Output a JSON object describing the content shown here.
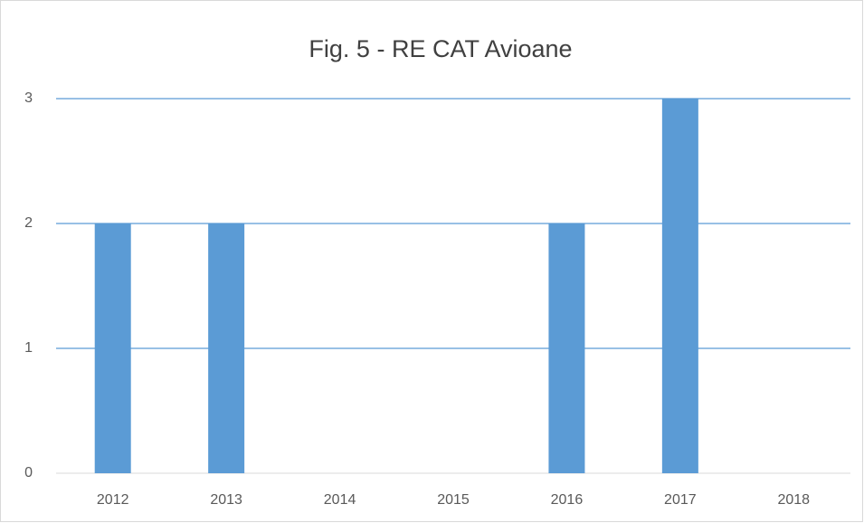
{
  "chart_data": {
    "type": "bar",
    "title": "Fig. 5 - RE CAT Avioane",
    "categories": [
      "2012",
      "2013",
      "2014",
      "2015",
      "2016",
      "2017",
      "2018"
    ],
    "values": [
      2,
      2,
      0,
      0,
      2,
      3,
      0
    ],
    "color": "#5b9bd5",
    "ylim": [
      0,
      3
    ],
    "yticks": [
      0,
      1,
      2,
      3
    ],
    "grid": true
  }
}
